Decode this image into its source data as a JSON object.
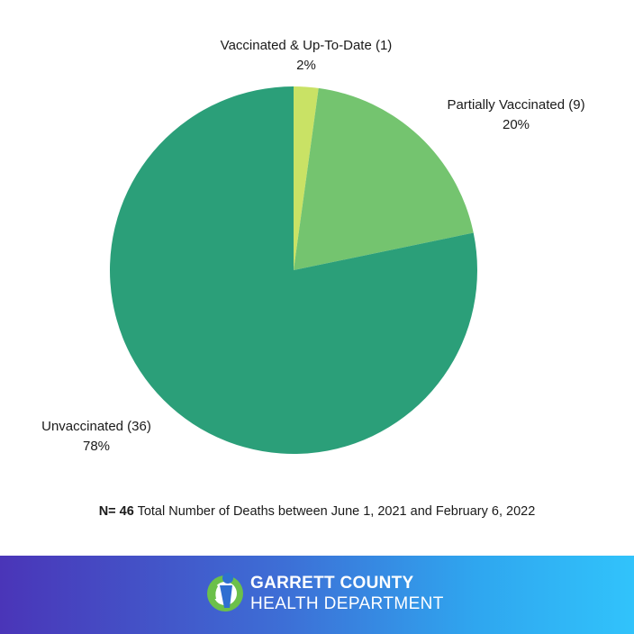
{
  "chart_data": {
    "type": "pie",
    "slices": [
      {
        "label": "Vaccinated & Up-To-Date (1)",
        "percent_label": "2%",
        "value": 1,
        "color": "#c9e265"
      },
      {
        "label": "Partially Vaccinated (9)",
        "percent_label": "20%",
        "value": 9,
        "color": "#74c46f"
      },
      {
        "label": "Unvaccinated (36)",
        "percent_label": "78%",
        "value": 36,
        "color": "#2b9f79"
      }
    ],
    "start_angle_deg": 0,
    "direction": "clockwise"
  },
  "footnote": {
    "bold": "N= 46",
    "text": " Total Number of Deaths between June 1, 2021 and February 6, 2022"
  },
  "banner": {
    "org_line_1": "GARRETT COUNTY",
    "org_line_2": "HEALTH DEPARTMENT",
    "logo_icon": "person-icon",
    "colors": {
      "gradient_start": "#4a35b8",
      "gradient_end": "#31c3fb",
      "logo_green": "#6cc04a",
      "logo_blue": "#2f6fd1"
    }
  }
}
